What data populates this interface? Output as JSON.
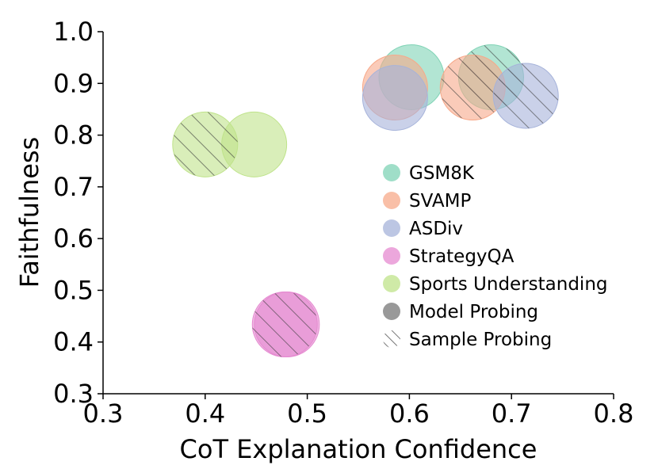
{
  "chart_data": {
    "type": "scatter",
    "title": "",
    "xlabel": "CoT Explanation Confidence",
    "ylabel": "Faithfulness",
    "xlim": [
      0.3,
      0.8
    ],
    "ylim": [
      0.3,
      1.0
    ],
    "xticks": [
      "0.3",
      "0.4",
      "0.5",
      "0.6",
      "0.7",
      "0.8"
    ],
    "yticks": [
      "0.3",
      "0.4",
      "0.5",
      "0.6",
      "0.7",
      "0.8",
      "0.9",
      "1.0"
    ],
    "legend_position": "center-right",
    "series": [
      {
        "name": "GSM8K",
        "color": "#7fd3b5",
        "points": [
          {
            "x": 0.602,
            "y": 0.912,
            "method": "Model Probing"
          },
          {
            "x": 0.68,
            "y": 0.912,
            "method": "Sample Probing"
          }
        ]
      },
      {
        "name": "SVAMP",
        "color": "#f7a98a",
        "points": [
          {
            "x": 0.586,
            "y": 0.892,
            "method": "Model Probing"
          },
          {
            "x": 0.662,
            "y": 0.892,
            "method": "Sample Probing"
          }
        ]
      },
      {
        "name": "ASDiv",
        "color": "#a6b3da",
        "points": [
          {
            "x": 0.586,
            "y": 0.872,
            "method": "Model Probing"
          },
          {
            "x": 0.714,
            "y": 0.876,
            "method": "Sample Probing"
          }
        ]
      },
      {
        "name": "StrategyQA",
        "color": "#e58ad0",
        "points": [
          {
            "x": 0.48,
            "y": 0.434,
            "method": "Model Probing"
          },
          {
            "x": 0.478,
            "y": 0.434,
            "method": "Sample Probing"
          }
        ]
      },
      {
        "name": "Sports Understanding",
        "color": "#bfe38a",
        "points": [
          {
            "x": 0.448,
            "y": 0.782,
            "method": "Model Probing"
          },
          {
            "x": 0.4,
            "y": 0.782,
            "method": "Sample Probing"
          }
        ]
      }
    ],
    "legend": [
      {
        "label": "GSM8K",
        "kind": "color",
        "color": "#7fd3b5"
      },
      {
        "label": "SVAMP",
        "kind": "color",
        "color": "#f7a98a"
      },
      {
        "label": "ASDiv",
        "kind": "color",
        "color": "#a6b3da"
      },
      {
        "label": "StrategyQA",
        "kind": "color",
        "color": "#e58ad0"
      },
      {
        "label": "Sports Understanding",
        "kind": "color",
        "color": "#bfe38a"
      },
      {
        "label": "Model Probing",
        "kind": "solid",
        "color": "#999999"
      },
      {
        "label": "Sample Probing",
        "kind": "hatch",
        "color": "#999999"
      }
    ]
  }
}
